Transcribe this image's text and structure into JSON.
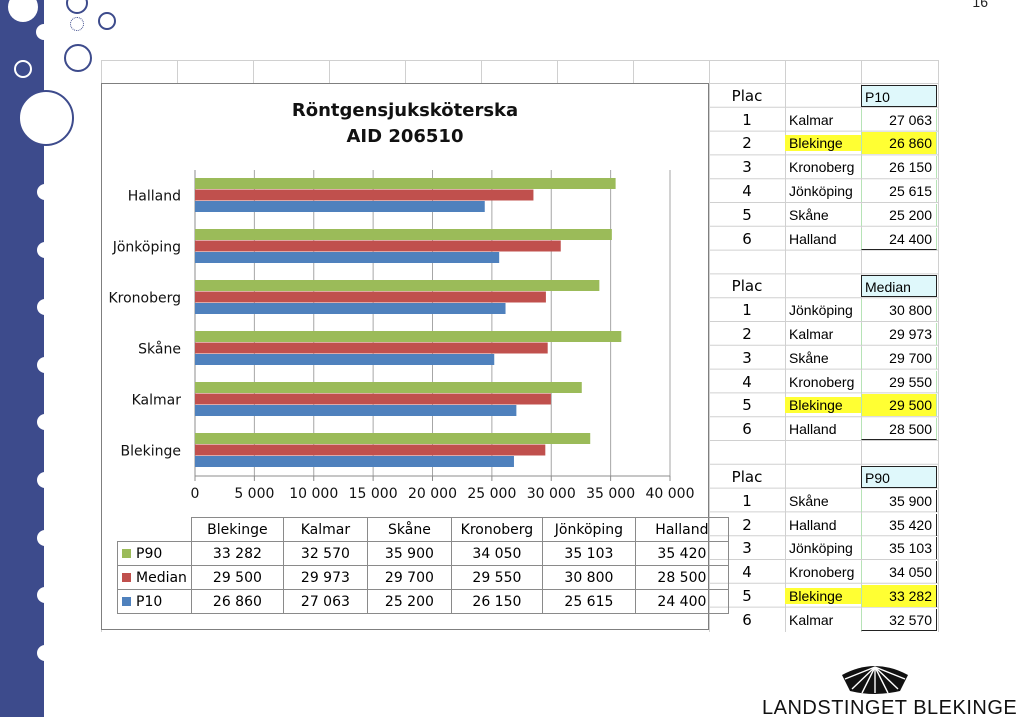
{
  "slide": {
    "page_number": "16"
  },
  "chart_data": {
    "type": "bar",
    "orientation": "horizontal",
    "title_line1": "Röntgensjuksköterska",
    "title_line2": "AID 206510",
    "categories": [
      "Blekinge",
      "Kalmar",
      "Skåne",
      "Kronoberg",
      "Jönköping",
      "Halland"
    ],
    "series": [
      {
        "name": "P90",
        "color": "#9bbb59",
        "values": [
          33282,
          32570,
          35900,
          34050,
          35103,
          35420
        ],
        "labels": [
          "33 282",
          "32 570",
          "35 900",
          "34 050",
          "35 103",
          "35 420"
        ]
      },
      {
        "name": "Median",
        "color": "#c0504d",
        "values": [
          29500,
          29973,
          29700,
          29550,
          30800,
          28500
        ],
        "labels": [
          "29 500",
          "29 973",
          "29 700",
          "29 550",
          "30 800",
          "28 500"
        ]
      },
      {
        "name": "P10",
        "color": "#4f81bd",
        "values": [
          26860,
          27063,
          25200,
          26150,
          25615,
          24400
        ],
        "labels": [
          "26 860",
          "27 063",
          "25 200",
          "26 150",
          "25 615",
          "24 400"
        ]
      }
    ],
    "xlim": [
      0,
      40000
    ],
    "xticks": [
      0,
      5000,
      10000,
      15000,
      20000,
      25000,
      30000,
      35000,
      40000
    ],
    "xtick_labels": [
      "0",
      "5 000",
      "10 000",
      "15 000",
      "20 000",
      "25 000",
      "30 000",
      "35 000",
      "40 000"
    ],
    "grid": true,
    "data_table": true
  },
  "rankings": [
    {
      "plac_label": "Plac",
      "metric": "P10",
      "rows": [
        {
          "rank": "1",
          "county": "Kalmar",
          "value": "27 063",
          "highlight": false
        },
        {
          "rank": "2",
          "county": "Blekinge",
          "value": "26 860",
          "highlight": true
        },
        {
          "rank": "3",
          "county": "Kronoberg",
          "value": "26 150",
          "highlight": false
        },
        {
          "rank": "4",
          "county": "Jönköping",
          "value": "25 615",
          "highlight": false
        },
        {
          "rank": "5",
          "county": "Skåne",
          "value": "25 200",
          "highlight": false
        },
        {
          "rank": "6",
          "county": "Halland",
          "value": "24 400",
          "highlight": false
        }
      ]
    },
    {
      "plac_label": "Plac",
      "metric": "Median",
      "rows": [
        {
          "rank": "1",
          "county": "Jönköping",
          "value": "30 800",
          "highlight": false
        },
        {
          "rank": "2",
          "county": "Kalmar",
          "value": "29 973",
          "highlight": false
        },
        {
          "rank": "3",
          "county": "Skåne",
          "value": "29 700",
          "highlight": false
        },
        {
          "rank": "4",
          "county": "Kronoberg",
          "value": "29 550",
          "highlight": false
        },
        {
          "rank": "5",
          "county": "Blekinge",
          "value": "29 500",
          "highlight": true
        },
        {
          "rank": "6",
          "county": "Halland",
          "value": "28 500",
          "highlight": false
        }
      ]
    },
    {
      "plac_label": "Plac",
      "metric": "P90",
      "rows": [
        {
          "rank": "1",
          "county": "Skåne",
          "value": "35 900",
          "highlight": false
        },
        {
          "rank": "2",
          "county": "Halland",
          "value": "35 420",
          "highlight": false
        },
        {
          "rank": "3",
          "county": "Jönköping",
          "value": "35 103",
          "highlight": false
        },
        {
          "rank": "4",
          "county": "Kronoberg",
          "value": "34 050",
          "highlight": false
        },
        {
          "rank": "5",
          "county": "Blekinge",
          "value": "33 282",
          "highlight": true
        },
        {
          "rank": "6",
          "county": "Kalmar",
          "value": "32 570",
          "highlight": false
        }
      ]
    }
  ],
  "colors": {
    "sidebar": "#3d4b8c",
    "highlight": "#ffff33",
    "metric_header": "#dff8fb"
  },
  "logo": {
    "text": "LANDSTINGET BLEKINGE"
  }
}
